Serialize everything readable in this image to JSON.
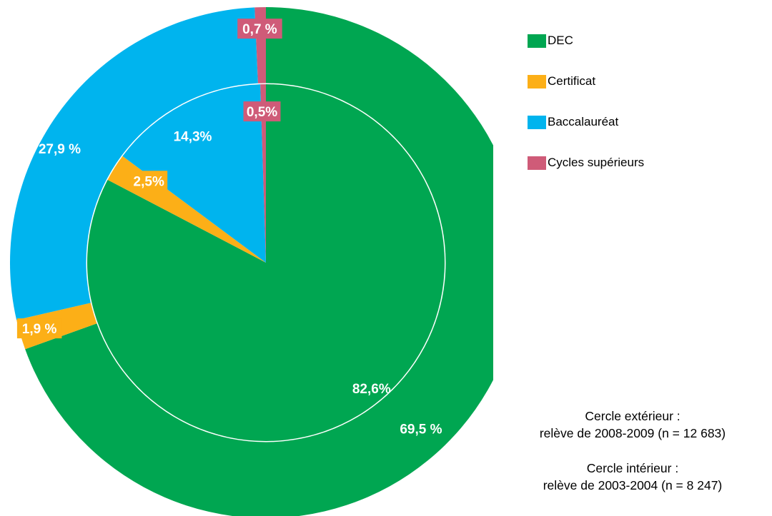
{
  "chart_data": {
    "type": "pie",
    "subtype": "double-donut",
    "categories": [
      "DEC",
      "Certificat",
      "Baccalauréat",
      "Cycles supérieurs"
    ],
    "colors": [
      "#00a651",
      "#fcaf17",
      "#00b4ee",
      "#cf5b78"
    ],
    "series": [
      {
        "ring": "outer",
        "values": [
          69.5,
          1.9,
          27.9,
          0.7
        ],
        "labels": [
          "69,5 %",
          "1,9 %",
          "27,9 %",
          "0,7 %"
        ]
      },
      {
        "ring": "inner",
        "values": [
          82.6,
          2.5,
          14.3,
          0.5
        ],
        "labels": [
          "82,6%",
          "2,5%",
          "14,3%",
          "0,5%"
        ]
      }
    ],
    "legend": {
      "placement": "top-right",
      "entries": [
        "DEC",
        "Certificat",
        "Baccalauréat",
        "Cycles supérieurs"
      ]
    }
  },
  "notes": {
    "outer_title": "Cercle extérieur :",
    "outer_detail": "relève de 2008-2009 (n = 12 683)",
    "inner_title": "Cercle intérieur :",
    "inner_detail": "relève de 2003-2004 (n = 8 247)"
  }
}
